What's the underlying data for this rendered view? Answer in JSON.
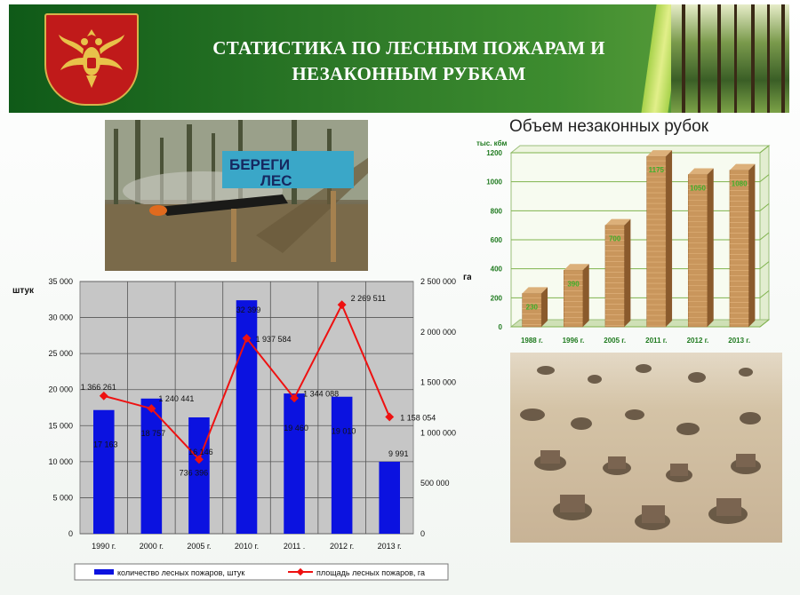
{
  "header": {
    "title_line1": "СТАТИСТИКА ПО ЛЕСНЫМ ПОЖАРАМ И",
    "title_line2": "НЕЗАКОННЫМ РУБКАМ"
  },
  "sign_text": {
    "line1": "БЕРЕГИ",
    "line2": "ЛЕС"
  },
  "colors": {
    "bar": "#0b12e0",
    "line": "#ee1111",
    "banner": "#2e7a28",
    "wood": "#c9965c"
  },
  "chart_data": [
    {
      "type": "bar",
      "title": "",
      "categories": [
        "1990 г.",
        "2000 г.",
        "2005 г.",
        "2010 г.",
        "2011 .",
        "2012 г.",
        "2013 г."
      ],
      "y_left_label": "штук",
      "y_right_label": "га",
      "ylim_left": [
        0,
        35000
      ],
      "ylim_right": [
        0,
        2500000
      ],
      "y_left_ticks": [
        "0",
        "5 000",
        "10 000",
        "15 000",
        "20 000",
        "25 000",
        "30 000",
        "35 000"
      ],
      "y_right_ticks": [
        "0",
        "500 000",
        "1 000 000",
        "1 500 000",
        "2 000 000",
        "2 500 000"
      ],
      "grid": true,
      "legend_position": "bottom",
      "series": [
        {
          "name": "количество лесных пожаров, штук",
          "type": "bar",
          "axis": "left",
          "values": [
            17163,
            18757,
            16146,
            32399,
            19460,
            19010,
            9991
          ],
          "labels": [
            "17 163",
            "18 757",
            "16 146",
            "32 399",
            "19 460",
            "19 010",
            "9 991"
          ]
        },
        {
          "name": "площадь лесных пожаров, га",
          "type": "line",
          "axis": "right",
          "values": [
            1366261,
            1240441,
            736396,
            1937584,
            1344088,
            2269511,
            1158054
          ],
          "labels": [
            "1 366 261",
            "1 240 441",
            "736 396",
            "1 937 584",
            "1 344 088",
            "2 269 511",
            "1 158 054"
          ]
        }
      ]
    },
    {
      "type": "bar",
      "title": "Объем незаконных рубок",
      "ylabel": "тыс. кбм",
      "categories": [
        "1988 г.",
        "1996 г.",
        "2005 г.",
        "2011 г.",
        "2012 г.",
        "2013 г."
      ],
      "values": [
        230,
        390,
        700,
        1175,
        1050,
        1080
      ],
      "labels": [
        "230",
        "390",
        "700",
        "1175",
        "1050",
        "1080"
      ],
      "ylim": [
        0,
        1200
      ],
      "y_ticks": [
        "0",
        "200",
        "400",
        "600",
        "800",
        "1000",
        "1200"
      ],
      "grid": true
    }
  ]
}
